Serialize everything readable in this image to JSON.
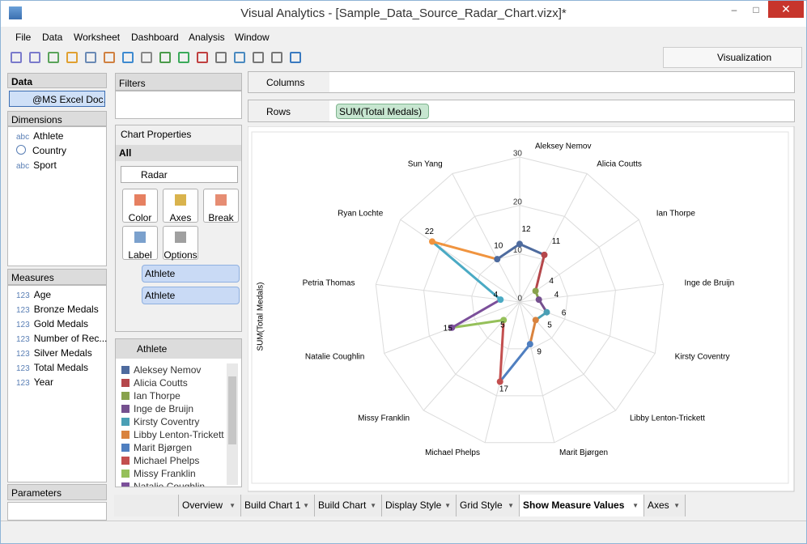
{
  "window": {
    "title": "Visual Analytics - [Sample_Data_Source_Radar_Chart.vizx]*"
  },
  "menu": [
    "File",
    "Data",
    "Worksheet",
    "Dashboard",
    "Analysis",
    "Window"
  ],
  "toolbar": {
    "visualization": "Visualization"
  },
  "data_panel": {
    "title": "Data",
    "source": "@MS Excel Doc...",
    "dimensions_title": "Dimensions",
    "dimensions": [
      {
        "icon": "abc",
        "name": "Athlete"
      },
      {
        "name": "Country"
      },
      {
        "icon": "abc",
        "name": "Sport"
      }
    ],
    "measures_title": "Measures",
    "measures": [
      {
        "icon": "123",
        "name": "Age"
      },
      {
        "icon": "123",
        "name": "Bronze Medals"
      },
      {
        "icon": "123",
        "name": "Gold Medals"
      },
      {
        "icon": "123",
        "name": "Number of Rec..."
      },
      {
        "icon": "123",
        "name": "Silver Medals"
      },
      {
        "icon": "123",
        "name": "Total Medals"
      },
      {
        "icon": "123",
        "name": "Year"
      }
    ],
    "parameters_title": "Parameters"
  },
  "filters": {
    "title": "Filters"
  },
  "chart_properties": {
    "title": "Chart Properties",
    "section": "All",
    "chart_type": "Radar",
    "buttons": [
      "Color",
      "Axes",
      "Break",
      "Label",
      "Options"
    ],
    "fields": [
      "Athlete",
      "Athlete"
    ]
  },
  "legend": {
    "title": "Athlete"
  },
  "shelves": {
    "columns": "Columns",
    "rows": "Rows",
    "rows_pill": "SUM(Total Medals)"
  },
  "tabs": {
    "items": [
      "Overview",
      "Build Chart 1",
      "Build Chart",
      "Display Style",
      "Grid Style",
      "Show Measure Values",
      "Axes"
    ],
    "active": "Show Measure Values"
  },
  "chart_data": {
    "type": "radar",
    "y_label": "SUM(Total Medals)",
    "categories": [
      "Aleksey Nemov",
      "Alicia Coutts",
      "Ian Thorpe",
      "Inge de Bruijn",
      "Kirsty Coventry",
      "Libby Lenton-Trickett",
      "Marit Bjørgen",
      "Michael Phelps",
      "Missy Franklin",
      "Natalie Coughlin",
      "Petria Thomas",
      "Ryan Lochte",
      "Sun Yang"
    ],
    "values": [
      12,
      11,
      4,
      4,
      6,
      5,
      9,
      17,
      5,
      15,
      4,
      22,
      10
    ],
    "colors": [
      "#4e6b9e",
      "#b5474b",
      "#88a24c",
      "#75508f",
      "#4a9fb5",
      "#d9833e",
      "#4f7fc0",
      "#c34f4f",
      "#95c05a",
      "#7b4f9a",
      "#4aaac4",
      "#f0943f",
      "#4e6b9e"
    ],
    "ylim": [
      0,
      30
    ],
    "yticks": [
      0,
      10,
      20,
      30
    ],
    "grid": true
  }
}
